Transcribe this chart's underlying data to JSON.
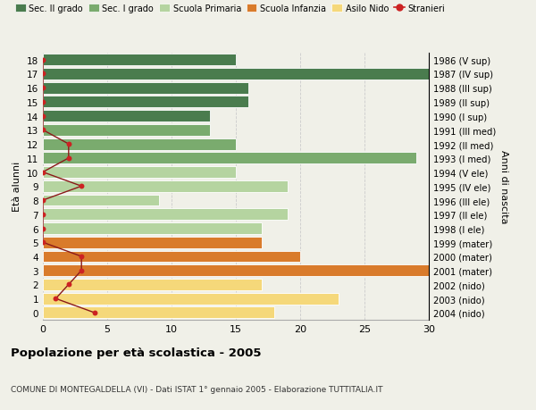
{
  "ages": [
    18,
    17,
    16,
    15,
    14,
    13,
    12,
    11,
    10,
    9,
    8,
    7,
    6,
    5,
    4,
    3,
    2,
    1,
    0
  ],
  "labels_right": [
    "1986 (V sup)",
    "1987 (IV sup)",
    "1988 (III sup)",
    "1989 (II sup)",
    "1990 (I sup)",
    "1991 (III med)",
    "1992 (II med)",
    "1993 (I med)",
    "1994 (V ele)",
    "1995 (IV ele)",
    "1996 (III ele)",
    "1997 (II ele)",
    "1998 (I ele)",
    "1999 (mater)",
    "2000 (mater)",
    "2001 (mater)",
    "2002 (nido)",
    "2003 (nido)",
    "2004 (nido)"
  ],
  "bar_values": [
    15,
    30,
    16,
    16,
    13,
    13,
    15,
    29,
    15,
    19,
    9,
    19,
    17,
    17,
    20,
    30,
    17,
    23,
    18
  ],
  "bar_colors": [
    "#4a7c4e",
    "#4a7c4e",
    "#4a7c4e",
    "#4a7c4e",
    "#4a7c4e",
    "#7aab6e",
    "#7aab6e",
    "#7aab6e",
    "#b5d4a0",
    "#b5d4a0",
    "#b5d4a0",
    "#b5d4a0",
    "#b5d4a0",
    "#d97b2b",
    "#d97b2b",
    "#d97b2b",
    "#f5d87a",
    "#f5d87a",
    "#f5d87a"
  ],
  "stranieri_x": [
    0,
    0,
    0,
    0,
    0,
    0,
    2,
    2,
    0,
    3,
    0,
    0,
    0,
    0,
    3,
    3,
    2,
    1,
    4
  ],
  "legend_labels": [
    "Sec. II grado",
    "Sec. I grado",
    "Scuola Primaria",
    "Scuola Infanzia",
    "Asilo Nido",
    "Stranieri"
  ],
  "legend_colors": [
    "#4a7c4e",
    "#7aab6e",
    "#b5d4a0",
    "#d97b2b",
    "#f5d87a",
    "#cc2222"
  ],
  "title": "Popolazione per età scolastica - 2005",
  "subtitle": "COMUNE DI MONTEGALDELLA (VI) - Dati ISTAT 1° gennaio 2005 - Elaborazione TUTTITALIA.IT",
  "ylabel_left": "Età alunni",
  "ylabel_right": "Anni di nascita",
  "xlim": [
    0,
    30
  ],
  "bg_color": "#f0f0e8",
  "grid_color": "#cccccc",
  "bar_edge_color": "#ffffff",
  "bar_height": 0.82
}
